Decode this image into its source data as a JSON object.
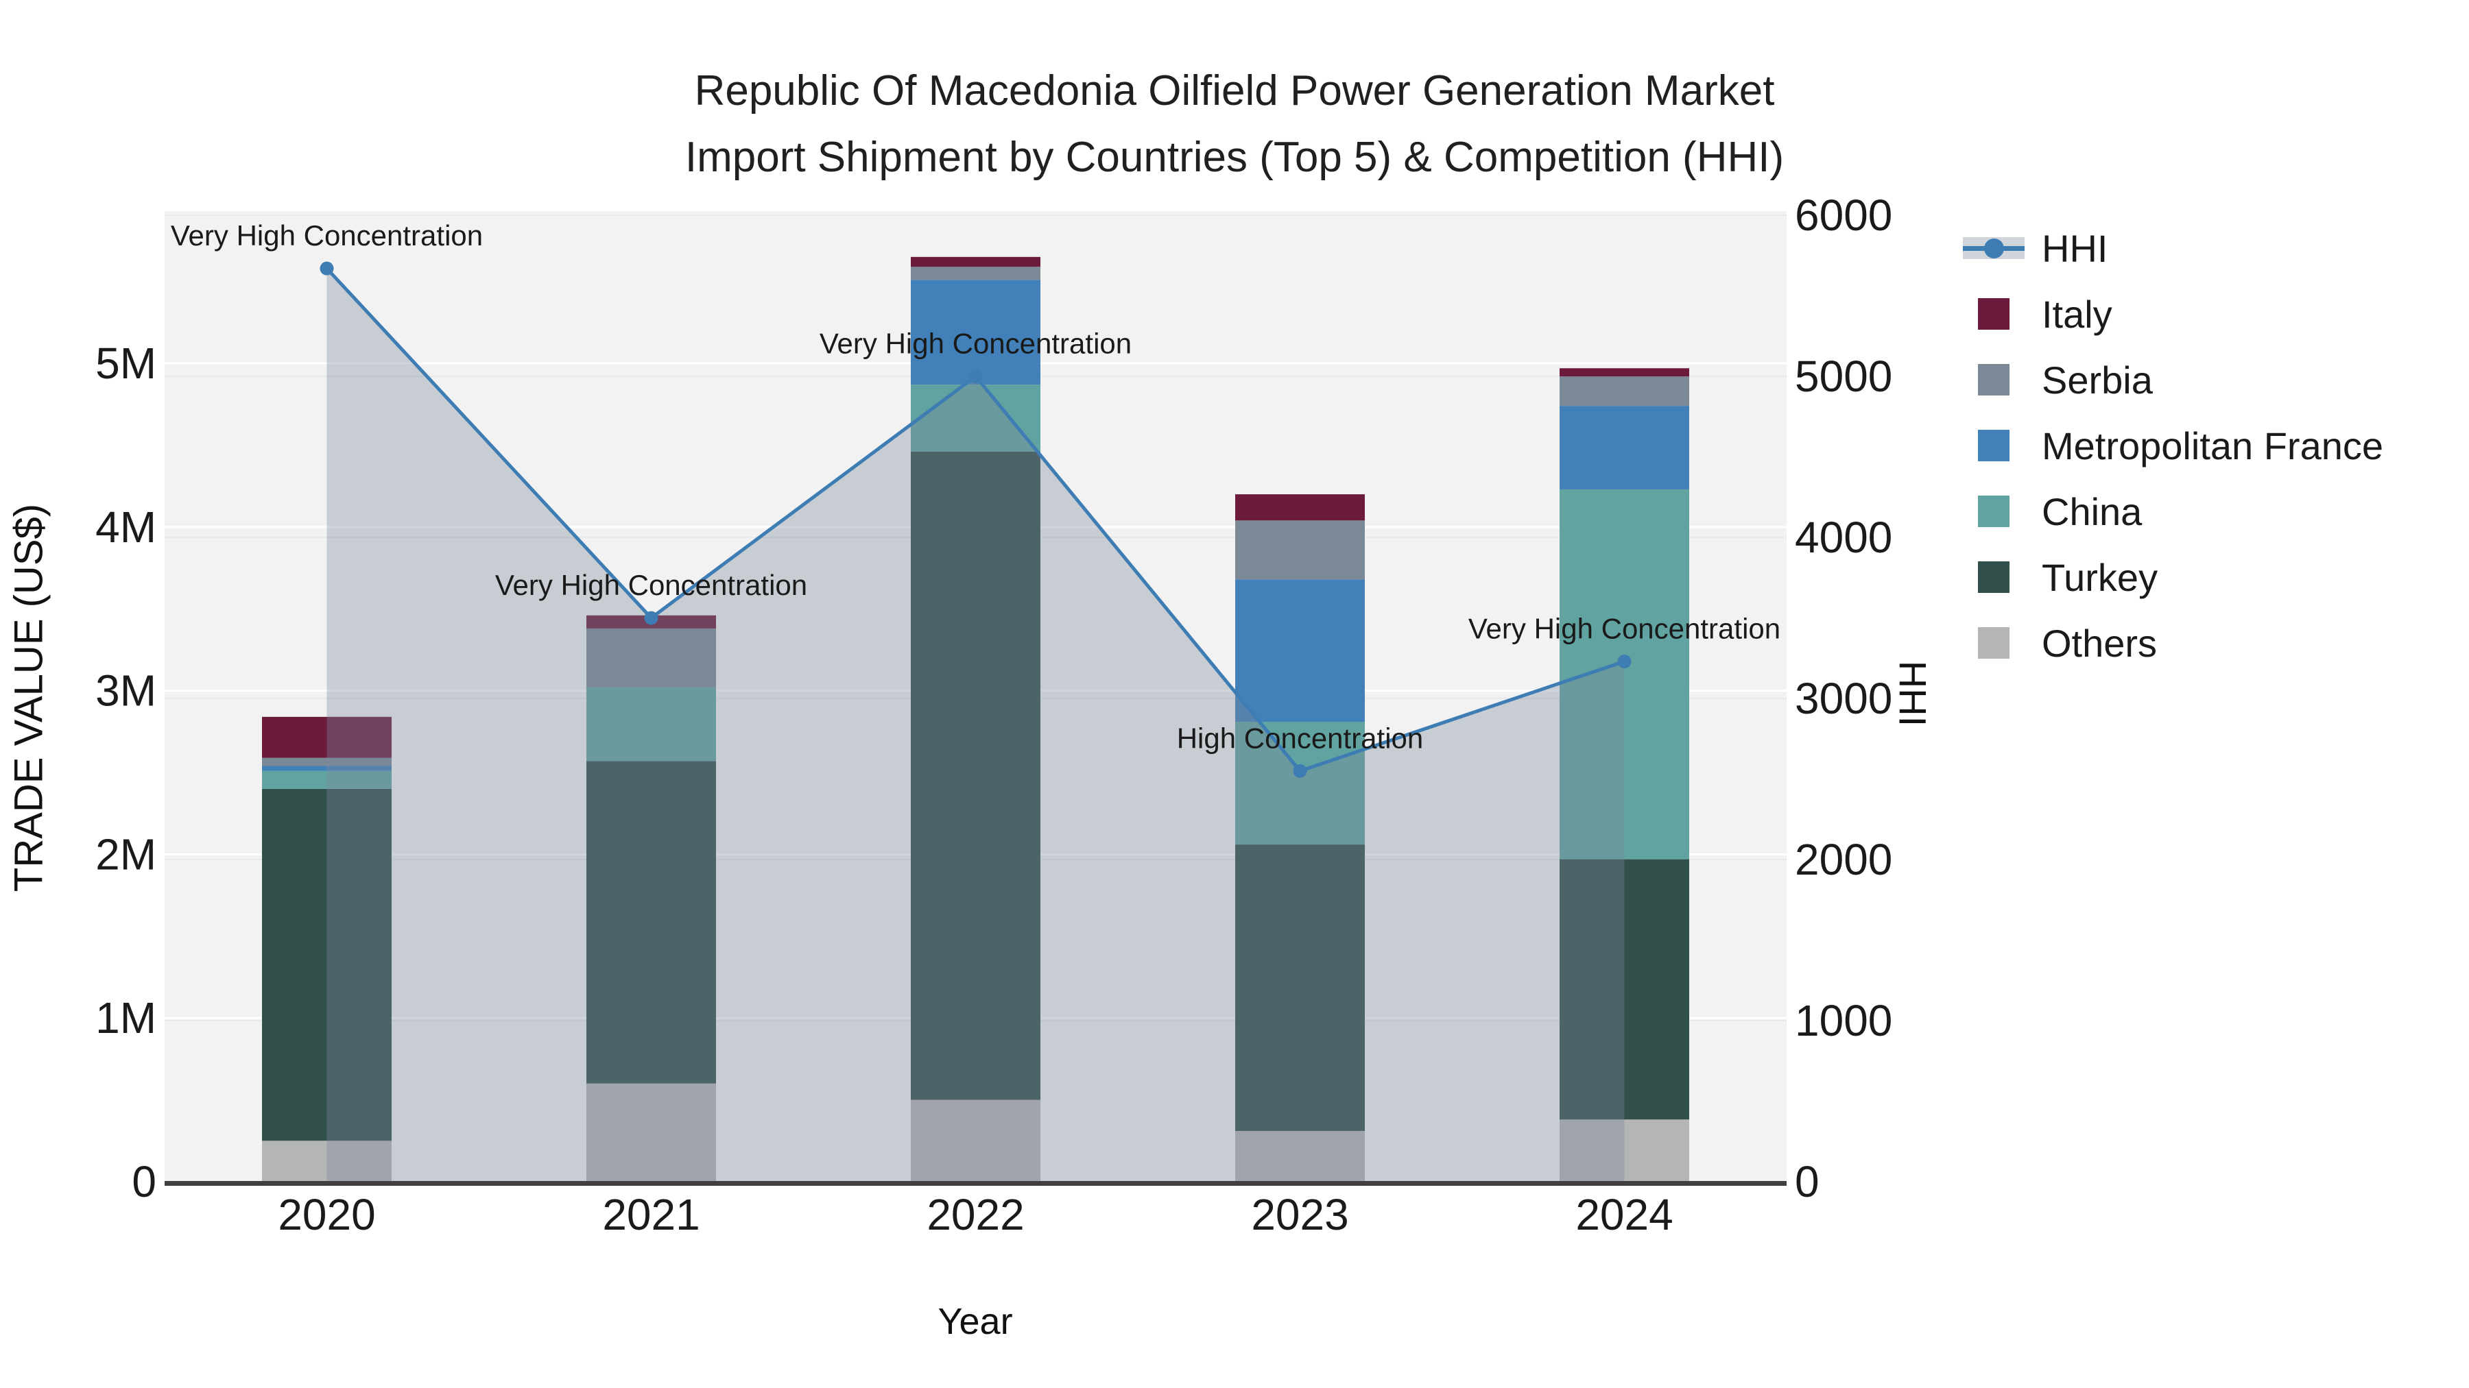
{
  "title": {
    "line1": "Republic Of Macedonia Oilfield Power Generation Market",
    "line2": "Import Shipment by Countries (Top 5) & Competition (HHI)"
  },
  "chart_data": {
    "type": "stacked-bar + line combo",
    "categories": [
      "2020",
      "2021",
      "2022",
      "2023",
      "2024"
    ],
    "unit": "trade value in millions of US$ (left axis), HHI index (right axis)",
    "series": [
      {
        "name": "Italy",
        "color": "#6B1A3B",
        "values_usd_m": [
          0.25,
          0.08,
          0.06,
          0.16,
          0.05
        ]
      },
      {
        "name": "Serbia",
        "color": "#7B8997",
        "values_usd_m": [
          0.05,
          0.36,
          0.08,
          0.36,
          0.18
        ]
      },
      {
        "name": "Metropolitan France",
        "color": "#4180B9",
        "values_usd_m": [
          0.03,
          0.0,
          0.64,
          0.87,
          0.51
        ]
      },
      {
        "name": "China",
        "color": "#60A3A0",
        "values_usd_m": [
          0.11,
          0.45,
          0.41,
          0.75,
          2.26
        ]
      },
      {
        "name": "Turkey",
        "color": "#31504B",
        "values_usd_m": [
          2.15,
          1.97,
          3.96,
          1.75,
          1.59
        ]
      },
      {
        "name": "Others",
        "color": "#B3B6B5",
        "values_usd_m": [
          0.25,
          0.6,
          0.5,
          0.31,
          0.38
        ]
      }
    ],
    "stack_order_bottom_to_top": [
      "Others",
      "Turkey",
      "China",
      "Metropolitan France",
      "Serbia",
      "Italy"
    ],
    "line_series": {
      "name": "HHI",
      "color": "#3E7CB4",
      "area_color": "rgba(124,136,155,0.36)",
      "values": [
        5670,
        3500,
        5000,
        2550,
        3230
      ]
    },
    "annotations": [
      {
        "category": "2020",
        "text": "Very High Concentration"
      },
      {
        "category": "2021",
        "text": "Very High Concentration"
      },
      {
        "category": "2022",
        "text": "Very High Concentration"
      },
      {
        "category": "2023",
        "text": "High Concentration"
      },
      {
        "category": "2024",
        "text": "Very High Concentration"
      }
    ],
    "axes": {
      "left": {
        "label": "TRADE VALUE (US$)",
        "max": 5.93,
        "ticks": [
          {
            "v": 0,
            "label": "0"
          },
          {
            "v": 1,
            "label": "1M"
          },
          {
            "v": 2,
            "label": "2M"
          },
          {
            "v": 3,
            "label": "3M"
          },
          {
            "v": 4,
            "label": "4M"
          },
          {
            "v": 5,
            "label": "5M"
          }
        ]
      },
      "right": {
        "label": "HHI",
        "max": 6026,
        "ticks": [
          {
            "v": 0,
            "label": "0"
          },
          {
            "v": 1000,
            "label": "1000"
          },
          {
            "v": 2000,
            "label": "2000"
          },
          {
            "v": 3000,
            "label": "3000"
          },
          {
            "v": 4000,
            "label": "4000"
          },
          {
            "v": 5000,
            "label": "5000"
          },
          {
            "v": 6000,
            "label": "6000"
          }
        ]
      },
      "x": {
        "label": "Year"
      }
    },
    "plot_bg": "#F2F2F3",
    "grid_left_color": "#FFFFFF",
    "grid_right_color": "#E7E9EB",
    "axis_line_color": "#3F3F3F"
  },
  "legend": {
    "items": [
      {
        "label": "HHI",
        "type": "line",
        "color": "#3E7CB4",
        "band_color": "#D0D4DB"
      },
      {
        "label": "Italy",
        "type": "square",
        "color": "#6B1A3B"
      },
      {
        "label": "Serbia",
        "type": "square",
        "color": "#7B8997"
      },
      {
        "label": "Metropolitan France",
        "type": "square",
        "color": "#4180B9"
      },
      {
        "label": "China",
        "type": "square",
        "color": "#60A3A0"
      },
      {
        "label": "Turkey",
        "type": "square",
        "color": "#31504B"
      },
      {
        "label": "Others",
        "type": "square",
        "color": "#B3B6B5"
      }
    ]
  }
}
